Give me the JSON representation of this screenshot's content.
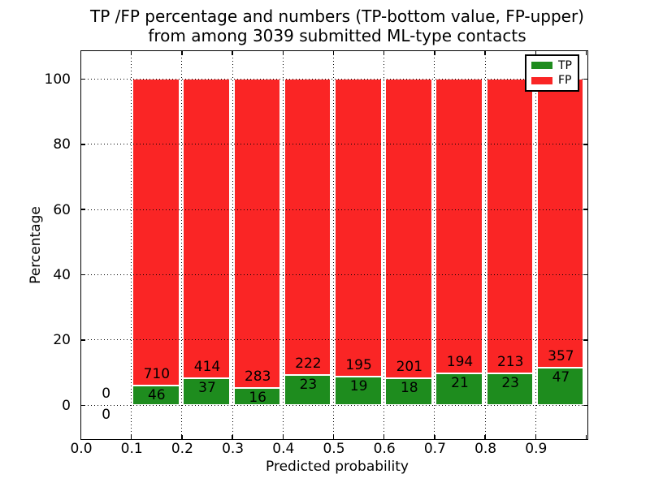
{
  "chart_data": {
    "type": "bar",
    "subtype": "stacked-percentage-histogram",
    "title_line1": "TP /FP percentage and numbers (TP-bottom value, FP-upper)",
    "title_line2": "from among 3039 submitted ML-type contacts",
    "xlabel": "Predicted probability",
    "ylabel": "Percentage",
    "legend": [
      {
        "label": "TP",
        "color": "#1e8c1e"
      },
      {
        "label": "FP",
        "color": "#fa2525"
      }
    ],
    "legend_position": "upper right",
    "colors": {
      "tp": "#1e8c1e",
      "fp": "#fa2525",
      "bar_edge": "#ffffff",
      "grid": "#000000",
      "text": "#000000"
    },
    "grid": "dotted",
    "xlim": [
      0,
      1
    ],
    "ylim": [
      -10,
      108.7
    ],
    "x_ticks": [
      {
        "v": 0.0,
        "label": "0.0"
      },
      {
        "v": 0.1,
        "label": "0.1"
      },
      {
        "v": 0.2,
        "label": "0.2"
      },
      {
        "v": 0.3,
        "label": "0.3"
      },
      {
        "v": 0.4,
        "label": "0.4"
      },
      {
        "v": 0.5,
        "label": "0.5"
      },
      {
        "v": 0.6,
        "label": "0.6"
      },
      {
        "v": 0.7,
        "label": "0.7"
      },
      {
        "v": 0.8,
        "label": "0.8"
      },
      {
        "v": 0.9,
        "label": "0.9"
      },
      {
        "v": 1.0,
        "label": ""
      }
    ],
    "y_ticks": [
      {
        "v": 0,
        "label": "0"
      },
      {
        "v": 20,
        "label": "20"
      },
      {
        "v": 40,
        "label": "40"
      },
      {
        "v": 60,
        "label": "60"
      },
      {
        "v": 80,
        "label": "80"
      },
      {
        "v": 100,
        "label": "100"
      }
    ],
    "bins": [
      {
        "x0": 0.0,
        "x1": 0.1,
        "tp": 0,
        "fp": 0
      },
      {
        "x0": 0.1,
        "x1": 0.2,
        "tp": 46,
        "fp": 710
      },
      {
        "x0": 0.2,
        "x1": 0.3,
        "tp": 37,
        "fp": 414
      },
      {
        "x0": 0.3,
        "x1": 0.4,
        "tp": 16,
        "fp": 283
      },
      {
        "x0": 0.4,
        "x1": 0.5,
        "tp": 23,
        "fp": 222
      },
      {
        "x0": 0.5,
        "x1": 0.6,
        "tp": 19,
        "fp": 195
      },
      {
        "x0": 0.6,
        "x1": 0.7,
        "tp": 18,
        "fp": 201
      },
      {
        "x0": 0.7,
        "x1": 0.8,
        "tp": 21,
        "fp": 194
      },
      {
        "x0": 0.8,
        "x1": 0.9,
        "tp": 23,
        "fp": 213
      },
      {
        "x0": 0.9,
        "x1": 1.0,
        "tp": 47,
        "fp": 357
      }
    ]
  }
}
